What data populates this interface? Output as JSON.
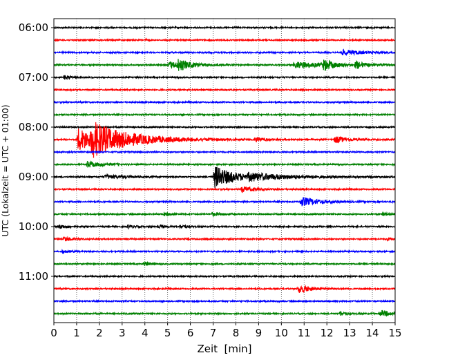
{
  "chart_data": {
    "type": "line",
    "title": "",
    "xlabel": "Zeit  [min]",
    "ylabel": "UTC (Lokalzeit = UTC + 01:00)",
    "xlim": [
      0,
      15
    ],
    "x_ticks": [
      "0",
      "1",
      "2",
      "3",
      "4",
      "5",
      "6",
      "7",
      "8",
      "9",
      "10",
      "11",
      "12",
      "13",
      "14",
      "15"
    ],
    "y_ticks": [
      "06:00",
      "07:00",
      "08:00",
      "09:00",
      "10:00",
      "11:00"
    ],
    "trace_interval_min": 15,
    "trace_count": 24,
    "trace_colors": [
      "#000000",
      "#ff0000",
      "#0000ff",
      "#008000"
    ],
    "grid": "vertical-dotted",
    "events": [
      {
        "trace": 1,
        "t": 4.0,
        "amp": 2,
        "tau": 0.1
      },
      {
        "trace": 2,
        "t": 12.6,
        "amp": 4,
        "tau": 0.9
      },
      {
        "trace": 3,
        "t": 5.0,
        "amp": 5,
        "tau": 0.7
      },
      {
        "trace": 3,
        "t": 5.4,
        "amp": 8,
        "tau": 0.5
      },
      {
        "trace": 3,
        "t": 10.5,
        "amp": 5,
        "tau": 1.2
      },
      {
        "trace": 3,
        "t": 11.8,
        "amp": 9,
        "tau": 0.4
      },
      {
        "trace": 3,
        "t": 13.2,
        "amp": 6,
        "tau": 0.4
      },
      {
        "trace": 4,
        "t": 0.4,
        "amp": 4,
        "tau": 0.25
      },
      {
        "trace": 5,
        "t": 10.9,
        "amp": 3,
        "tau": 0.1
      },
      {
        "trace": 9,
        "t": 1.0,
        "amp": 18,
        "tau": 0.9
      },
      {
        "trace": 9,
        "t": 1.6,
        "amp": 20,
        "tau": 1.8
      },
      {
        "trace": 9,
        "t": 8.8,
        "amp": 4,
        "tau": 0.3
      },
      {
        "trace": 9,
        "t": 12.3,
        "amp": 6,
        "tau": 0.5
      },
      {
        "trace": 11,
        "t": 1.4,
        "amp": 5,
        "tau": 0.6
      },
      {
        "trace": 12,
        "t": 2.2,
        "amp": 3,
        "tau": 1.0
      },
      {
        "trace": 12,
        "t": 7.0,
        "amp": 17,
        "tau": 0.9
      },
      {
        "trace": 12,
        "t": 8.5,
        "amp": 4,
        "tau": 2.5
      },
      {
        "trace": 13,
        "t": 8.2,
        "amp": 5,
        "tau": 0.5
      },
      {
        "trace": 14,
        "t": 10.8,
        "amp": 7,
        "tau": 0.8
      },
      {
        "trace": 15,
        "t": 4.8,
        "amp": 3,
        "tau": 0.3
      },
      {
        "trace": 15,
        "t": 6.9,
        "amp": 3,
        "tau": 0.4
      },
      {
        "trace": 15,
        "t": 14.4,
        "amp": 3,
        "tau": 0.3
      },
      {
        "trace": 16,
        "t": 0.2,
        "amp": 4,
        "tau": 0.3
      },
      {
        "trace": 16,
        "t": 3.2,
        "amp": 3,
        "tau": 0.3
      },
      {
        "trace": 16,
        "t": 4.5,
        "amp": 3,
        "tau": 0.3
      },
      {
        "trace": 16,
        "t": 5.5,
        "amp": 3,
        "tau": 0.3
      },
      {
        "trace": 17,
        "t": 0.4,
        "amp": 4,
        "tau": 0.3
      },
      {
        "trace": 17,
        "t": 14.6,
        "amp": 3,
        "tau": 0.2
      },
      {
        "trace": 18,
        "t": 0.3,
        "amp": 3,
        "tau": 0.3
      },
      {
        "trace": 19,
        "t": 3.9,
        "amp": 4,
        "tau": 0.25
      },
      {
        "trace": 21,
        "t": 10.7,
        "amp": 7,
        "tau": 0.5
      },
      {
        "trace": 23,
        "t": 12.5,
        "amp": 4,
        "tau": 0.3
      },
      {
        "trace": 23,
        "t": 14.3,
        "amp": 5,
        "tau": 0.5
      }
    ]
  }
}
